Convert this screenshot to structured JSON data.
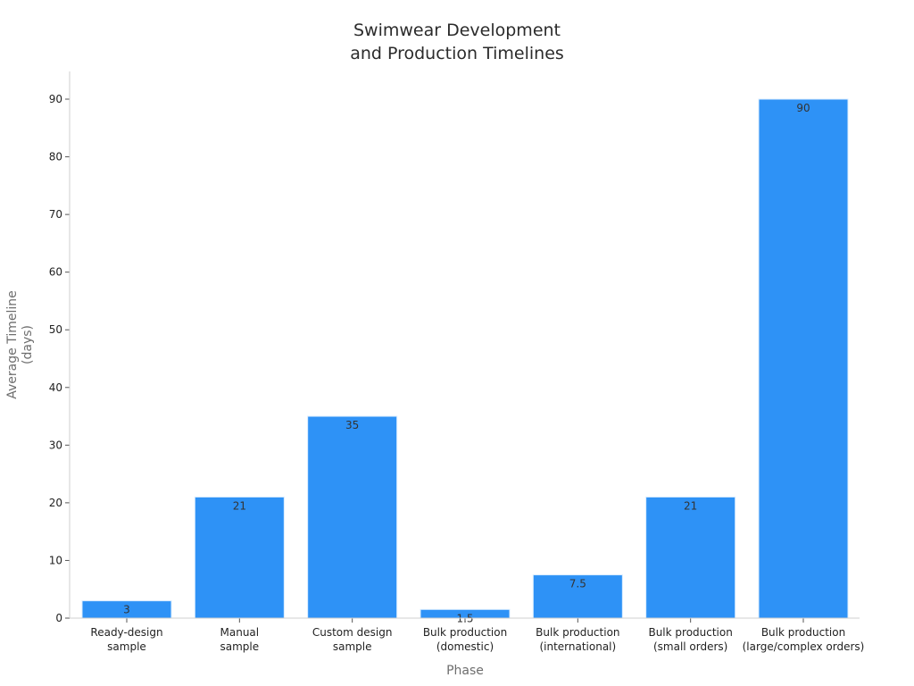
{
  "chart_data": {
    "type": "bar",
    "title_lines": [
      "Swimwear Development",
      "and Production Timelines"
    ],
    "xlabel": "Phase",
    "ylabel_lines": [
      "Average Timeline",
      "(days)"
    ],
    "categories": [
      [
        "Ready-design",
        "sample"
      ],
      [
        "Manual",
        "sample"
      ],
      [
        "Custom design",
        "sample"
      ],
      [
        "Bulk production",
        "(domestic)"
      ],
      [
        "Bulk production",
        "(international)"
      ],
      [
        "Bulk production",
        "(small orders)"
      ],
      [
        "Bulk production",
        "(large/complex orders)"
      ]
    ],
    "values": [
      3,
      21,
      35,
      1.5,
      7.5,
      21,
      90
    ],
    "data_labels": [
      "3",
      "21",
      "35",
      "1.5",
      "7.5",
      "21",
      "90"
    ],
    "ylim": [
      0,
      95
    ],
    "yticks": [
      0,
      10,
      20,
      30,
      40,
      50,
      60,
      70,
      80,
      90
    ],
    "grid": false,
    "legend": "none",
    "bar_color": "#2e92f6"
  }
}
